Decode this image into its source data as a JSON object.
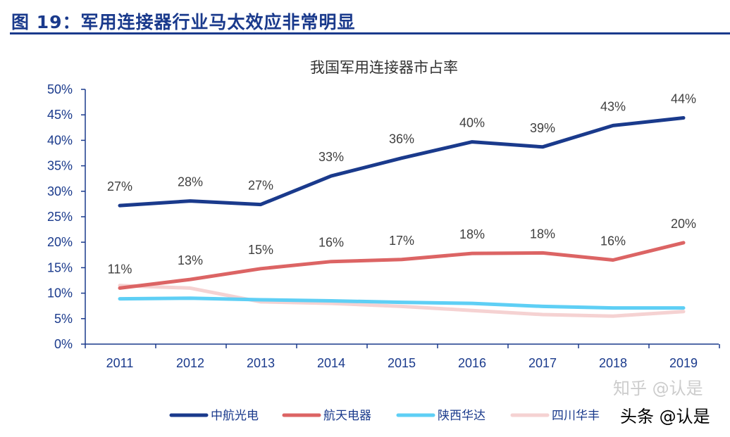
{
  "figure_title": "图 19：军用连接器行业马太效应非常明显",
  "watermarks": [
    "知乎 @认是",
    "头条 @认是"
  ],
  "chart_data": {
    "type": "line",
    "title": "我国军用连接器市占率",
    "xlabel": "",
    "ylabel": "",
    "categories": [
      "2011",
      "2012",
      "2013",
      "2014",
      "2015",
      "2016",
      "2017",
      "2018",
      "2019"
    ],
    "ylim": [
      0,
      50
    ],
    "yticks": [
      "0%",
      "5%",
      "10%",
      "15%",
      "20%",
      "25%",
      "30%",
      "35%",
      "40%",
      "45%",
      "50%"
    ],
    "grid": false,
    "legend": "bottom",
    "series": [
      {
        "name": "中航光电",
        "color": "#1a3a8c",
        "values": [
          27.2,
          28.1,
          27.4,
          33.0,
          36.5,
          39.7,
          38.7,
          42.9,
          44.4
        ],
        "labels": [
          "27%",
          "28%",
          "27%",
          "33%",
          "36%",
          "40%",
          "39%",
          "43%",
          "44%"
        ]
      },
      {
        "name": "航天电器",
        "color": "#dc6464",
        "values": [
          11.0,
          12.7,
          14.8,
          16.2,
          16.6,
          17.8,
          17.9,
          16.5,
          19.9
        ],
        "labels": [
          "11%",
          "13%",
          "15%",
          "16%",
          "17%",
          "18%",
          "18%",
          "16%",
          "20%"
        ]
      },
      {
        "name": "陕西华达",
        "color": "#5ecff5",
        "values": [
          8.9,
          9.0,
          8.7,
          8.5,
          8.2,
          8.0,
          7.4,
          7.1,
          7.1
        ]
      },
      {
        "name": "四川华丰",
        "color": "#f5d2d2",
        "values": [
          11.5,
          11.0,
          8.3,
          8.0,
          7.4,
          6.6,
          5.8,
          5.5,
          6.4
        ]
      }
    ]
  }
}
